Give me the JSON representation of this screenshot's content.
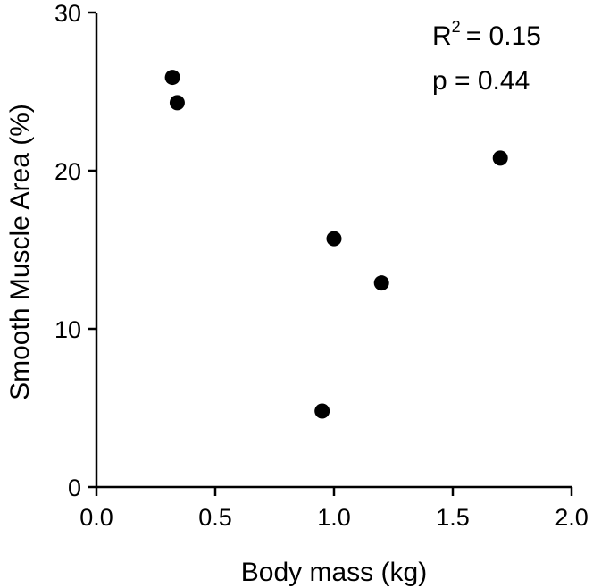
{
  "chart_data": {
    "type": "scatter",
    "xlabel": "Body mass (kg)",
    "ylabel": "Smooth Muscle Area (%)",
    "xlim": [
      0,
      2.0
    ],
    "ylim": [
      0,
      30
    ],
    "xticks": [
      "0.0",
      "0.5",
      "1.0",
      "1.5",
      "2.0"
    ],
    "yticks": [
      "0",
      "10",
      "20",
      "30"
    ],
    "grid": false,
    "points": [
      {
        "x": 0.32,
        "y": 25.9
      },
      {
        "x": 0.34,
        "y": 24.3
      },
      {
        "x": 0.95,
        "y": 4.8
      },
      {
        "x": 1.0,
        "y": 15.7
      },
      {
        "x": 1.2,
        "y": 12.9
      },
      {
        "x": 1.7,
        "y": 20.8
      }
    ],
    "annotations": {
      "r2_prefix": "R",
      "r2_sup": "2",
      "r2_value": "= 0.15",
      "p_text": "p = 0.44"
    },
    "colors": {
      "marker": "#000000",
      "axis": "#000000"
    }
  }
}
